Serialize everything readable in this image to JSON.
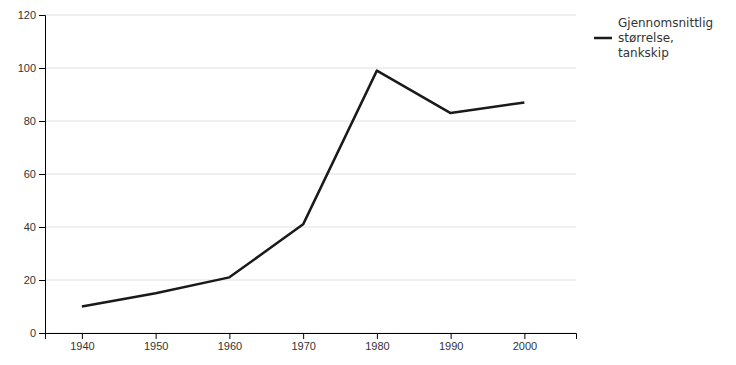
{
  "chart_data": {
    "type": "line",
    "x": [
      1940,
      1950,
      1960,
      1970,
      1980,
      1990,
      2000
    ],
    "series": [
      {
        "name": "Gjennomsnittlig\nstørrelse,\ntankskip",
        "color": "#1a1a1a",
        "values": [
          10,
          15,
          21,
          41,
          99,
          83,
          87
        ]
      }
    ],
    "xlim": [
      1935,
      2007
    ],
    "xticks": [
      1940,
      1950,
      1960,
      1970,
      1980,
      1990,
      2000
    ],
    "ylim": [
      0,
      120
    ],
    "yticks": [
      0,
      20,
      40,
      60,
      80,
      100,
      120
    ],
    "grid": true,
    "legend": "right"
  }
}
